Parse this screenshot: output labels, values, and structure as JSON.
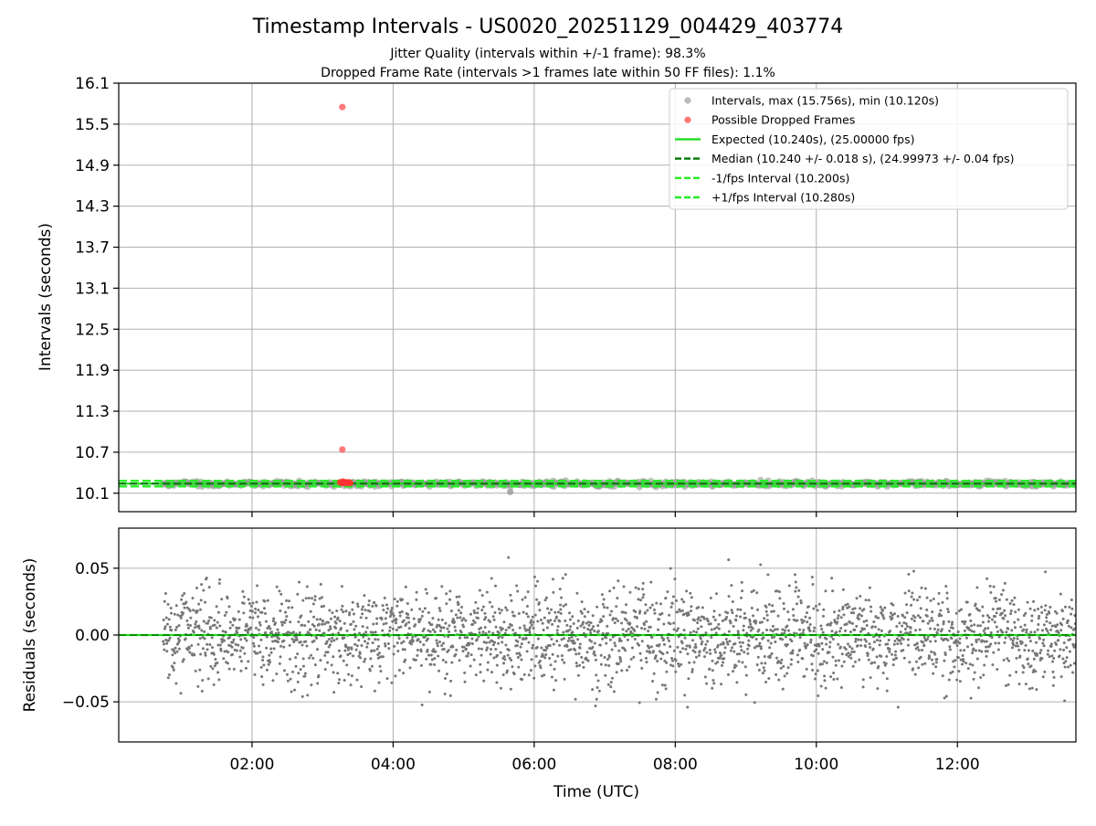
{
  "chart_data": {
    "type": "scatter",
    "title": "Timestamp Intervals - US0020_20251129_004429_403774",
    "subtitles": [
      "Jitter Quality (intervals within +/-1 frame): 98.3%",
      "Dropped Frame Rate (intervals >1 frames late within 50 FF files): 1.1%"
    ],
    "xlabel": "Time (UTC)",
    "x_ticks": [
      "02:00",
      "04:00",
      "06:00",
      "08:00",
      "10:00",
      "12:00"
    ],
    "x_tick_hours": [
      2,
      4,
      6,
      8,
      10,
      12
    ],
    "xlim_hours": [
      0.11,
      13.68
    ],
    "data_x_range_hours": [
      0.74,
      13.68
    ],
    "grid": true,
    "legend_position": "top-right",
    "colors": {
      "intervals": "#999999",
      "dropped": "#ff3333",
      "expected": "#22dd22",
      "median": "#007700",
      "bounds": "#22ee22",
      "residuals": "#777777"
    },
    "top_panel": {
      "ylabel": "Intervals (seconds)",
      "ylim": [
        9.83,
        16.1
      ],
      "y_ticks": [
        "10.1",
        "10.7",
        "11.3",
        "11.9",
        "12.5",
        "13.1",
        "13.7",
        "14.3",
        "14.9",
        "15.5",
        "16.1"
      ],
      "y_tick_values": [
        10.1,
        10.7,
        11.3,
        11.9,
        12.5,
        13.1,
        13.7,
        14.3,
        14.9,
        15.5,
        16.1
      ],
      "expected": 10.24,
      "median": 10.24,
      "lower_bound": 10.2,
      "upper_bound": 10.28,
      "interval_max": 15.756,
      "interval_min": 10.12,
      "dropped_frames": [
        {
          "x": 3.28,
          "y": 15.75
        },
        {
          "x": 3.28,
          "y": 10.74
        },
        {
          "x": 3.25,
          "y": 10.26
        },
        {
          "x": 3.27,
          "y": 10.25
        },
        {
          "x": 3.29,
          "y": 10.27
        },
        {
          "x": 3.31,
          "y": 10.25
        },
        {
          "x": 3.33,
          "y": 10.26
        },
        {
          "x": 3.35,
          "y": 10.25
        },
        {
          "x": 3.37,
          "y": 10.26
        },
        {
          "x": 3.39,
          "y": 10.25
        }
      ]
    },
    "bottom_panel": {
      "ylabel": "Residuals (seconds)",
      "ylim": [
        -0.08,
        0.08
      ],
      "y_ticks": [
        "0.05",
        "0.00",
        "−0.05"
      ],
      "y_tick_values": [
        0.05,
        0.0,
        -0.05
      ],
      "zero_line": 0.0,
      "residual_spread_sigma": 0.018
    },
    "legend": [
      {
        "label": "Intervals, max (15.756s), min (10.120s)",
        "kind": "marker",
        "color": "#aaaaaa"
      },
      {
        "label": "Possible Dropped Frames",
        "kind": "marker",
        "color": "#ff5555"
      },
      {
        "label": "Expected (10.240s), (25.00000 fps)",
        "kind": "line",
        "color": "#22dd22",
        "dash": "solid"
      },
      {
        "label": "Median (10.240 +/- 0.018 s), (24.99973 +/- 0.04 fps)",
        "kind": "line",
        "color": "#007700",
        "dash": "dashed"
      },
      {
        "label": "-1/fps Interval (10.200s)",
        "kind": "line",
        "color": "#22ee22",
        "dash": "dashed"
      },
      {
        "label": "+1/fps Interval (10.280s)",
        "kind": "line",
        "color": "#22ee22",
        "dash": "dashed"
      }
    ]
  }
}
